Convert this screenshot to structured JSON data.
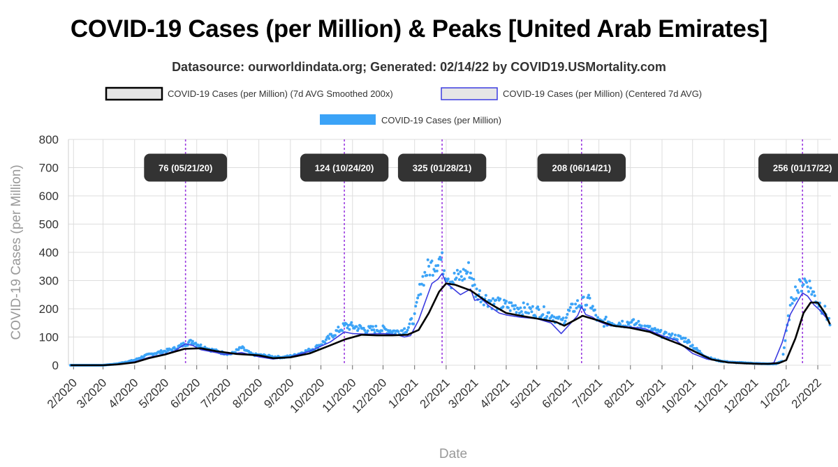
{
  "title": "COVID-19 Cases (per Million) & Peaks [United Arab Emirates]",
  "subtitle": "Datasource: ourworldindata.org; Generated: 02/14/22 by COVID19.USMortality.com",
  "colors": {
    "smoothed": "#000000",
    "centered": "#3b3be0",
    "daily": "#3ba3f7",
    "peak_line": "#9b3be0",
    "peak_label_bg": "#333333",
    "grid": "#dddddd"
  },
  "chart_data": {
    "type": "line",
    "title": "COVID-19 Cases (per Million) & Peaks [United Arab Emirates]",
    "xlabel": "Date",
    "ylabel": "COVID-19 Cases (per Million)",
    "ylim": [
      0,
      800
    ],
    "xlim": [
      "2020-01-27",
      "2022-02-14"
    ],
    "yticks": [
      0,
      100,
      200,
      300,
      400,
      500,
      600,
      700,
      800
    ],
    "xticks": [
      {
        "date": "2020-02-01",
        "label": "2/2020"
      },
      {
        "date": "2020-03-01",
        "label": "3/2020"
      },
      {
        "date": "2020-04-01",
        "label": "4/2020"
      },
      {
        "date": "2020-05-01",
        "label": "5/2020"
      },
      {
        "date": "2020-06-01",
        "label": "6/2020"
      },
      {
        "date": "2020-07-01",
        "label": "7/2020"
      },
      {
        "date": "2020-08-01",
        "label": "8/2020"
      },
      {
        "date": "2020-09-01",
        "label": "9/2020"
      },
      {
        "date": "2020-10-01",
        "label": "10/2020"
      },
      {
        "date": "2020-11-01",
        "label": "11/2020"
      },
      {
        "date": "2020-12-01",
        "label": "12/2020"
      },
      {
        "date": "2021-01-01",
        "label": "1/2021"
      },
      {
        "date": "2021-02-01",
        "label": "2/2021"
      },
      {
        "date": "2021-03-01",
        "label": "3/2021"
      },
      {
        "date": "2021-04-01",
        "label": "4/2021"
      },
      {
        "date": "2021-05-01",
        "label": "5/2021"
      },
      {
        "date": "2021-06-01",
        "label": "6/2021"
      },
      {
        "date": "2021-07-01",
        "label": "7/2021"
      },
      {
        "date": "2021-08-01",
        "label": "8/2021"
      },
      {
        "date": "2021-09-01",
        "label": "9/2021"
      },
      {
        "date": "2021-10-01",
        "label": "10/2021"
      },
      {
        "date": "2021-11-01",
        "label": "11/2021"
      },
      {
        "date": "2021-12-01",
        "label": "12/2021"
      },
      {
        "date": "2022-01-01",
        "label": "1/2022"
      },
      {
        "date": "2022-02-01",
        "label": "2/2022"
      }
    ],
    "grid": true,
    "legend_position": "top-center",
    "legend": [
      {
        "label": "COVID-19 Cases (per Million) (7d AVG Smoothed 200x)",
        "swatch": "box-black"
      },
      {
        "label": "COVID-19 Cases (per Million) (Centered 7d AVG)",
        "swatch": "box-blue"
      },
      {
        "label": "COVID-19 Cases (per Million)",
        "swatch": "bar-lightblue"
      }
    ],
    "peaks": [
      {
        "date": "2020-05-21",
        "value": 76,
        "label": "76 (05/21/20)"
      },
      {
        "date": "2020-10-24",
        "value": 124,
        "label": "124 (10/24/20)"
      },
      {
        "date": "2021-01-28",
        "value": 325,
        "label": "325 (01/28/21)"
      },
      {
        "date": "2021-06-14",
        "value": 208,
        "label": "208 (06/14/21)"
      },
      {
        "date": "2022-01-17",
        "value": 256,
        "label": "256 (01/17/22)"
      }
    ],
    "series": [
      {
        "name": "COVID-19 Cases (per Million) (7d AVG Smoothed 200x)",
        "x": [
          "2020-01-29",
          "2020-03-01",
          "2020-03-15",
          "2020-04-01",
          "2020-04-15",
          "2020-05-01",
          "2020-05-20",
          "2020-06-05",
          "2020-06-20",
          "2020-07-10",
          "2020-08-01",
          "2020-08-15",
          "2020-09-01",
          "2020-09-20",
          "2020-10-10",
          "2020-10-25",
          "2020-11-10",
          "2020-11-25",
          "2020-12-10",
          "2020-12-25",
          "2021-01-05",
          "2021-01-15",
          "2021-01-25",
          "2021-02-01",
          "2021-02-10",
          "2021-02-25",
          "2021-03-15",
          "2021-04-01",
          "2021-04-20",
          "2021-05-05",
          "2021-05-20",
          "2021-05-28",
          "2021-06-15",
          "2021-07-01",
          "2021-07-15",
          "2021-08-01",
          "2021-08-20",
          "2021-09-05",
          "2021-09-20",
          "2021-10-05",
          "2021-10-20",
          "2021-11-05",
          "2021-11-20",
          "2021-12-05",
          "2021-12-15",
          "2021-12-25",
          "2022-01-01",
          "2022-01-10",
          "2022-01-18",
          "2022-01-25",
          "2022-02-01",
          "2022-02-08",
          "2022-02-13"
        ],
        "y": [
          0,
          0,
          3,
          10,
          25,
          38,
          58,
          60,
          50,
          40,
          35,
          25,
          28,
          42,
          70,
          92,
          108,
          106,
          106,
          108,
          125,
          185,
          260,
          290,
          285,
          265,
          220,
          185,
          172,
          163,
          153,
          140,
          175,
          158,
          140,
          132,
          118,
          93,
          72,
          45,
          20,
          10,
          7,
          5,
          5,
          8,
          18,
          95,
          185,
          222,
          222,
          185,
          145
        ]
      },
      {
        "name": "COVID-19 Cases (per Million) (Centered 7d AVG)",
        "x": [
          "2020-01-29",
          "2020-03-01",
          "2020-03-15",
          "2020-04-01",
          "2020-04-15",
          "2020-05-01",
          "2020-05-10",
          "2020-05-21",
          "2020-05-28",
          "2020-06-05",
          "2020-06-20",
          "2020-06-28",
          "2020-07-05",
          "2020-07-15",
          "2020-08-01",
          "2020-08-15",
          "2020-09-01",
          "2020-09-20",
          "2020-10-10",
          "2020-10-24",
          "2020-11-01",
          "2020-11-15",
          "2020-12-01",
          "2020-12-15",
          "2020-12-22",
          "2020-12-28",
          "2021-01-05",
          "2021-01-12",
          "2021-01-18",
          "2021-01-24",
          "2021-01-28",
          "2021-02-01",
          "2021-02-05",
          "2021-02-15",
          "2021-02-25",
          "2021-03-01",
          "2021-03-08",
          "2021-03-15",
          "2021-03-25",
          "2021-04-01",
          "2021-04-15",
          "2021-05-01",
          "2021-05-15",
          "2021-05-25",
          "2021-06-01",
          "2021-06-10",
          "2021-06-14",
          "2021-06-18",
          "2021-06-25",
          "2021-07-01",
          "2021-07-10",
          "2021-07-20",
          "2021-08-01",
          "2021-08-15",
          "2021-09-01",
          "2021-09-15",
          "2021-10-01",
          "2021-10-15",
          "2021-11-01",
          "2021-11-20",
          "2021-12-05",
          "2021-12-15",
          "2021-12-20",
          "2021-12-28",
          "2022-01-05",
          "2022-01-12",
          "2022-01-17",
          "2022-01-22",
          "2022-01-28",
          "2022-02-03",
          "2022-02-10",
          "2022-02-13"
        ],
        "y": [
          0,
          0,
          2,
          12,
          28,
          40,
          50,
          76,
          70,
          55,
          45,
          38,
          40,
          45,
          30,
          22,
          30,
          50,
          82,
          118,
          112,
          110,
          112,
          108,
          100,
          105,
          160,
          230,
          290,
          305,
          325,
          290,
          280,
          250,
          270,
          230,
          235,
          210,
          185,
          178,
          170,
          165,
          150,
          112,
          140,
          175,
          208,
          180,
          170,
          155,
          142,
          138,
          135,
          130,
          105,
          88,
          42,
          22,
          12,
          8,
          6,
          5,
          10,
          80,
          180,
          225,
          256,
          245,
          215,
          195,
          165,
          148
        ]
      },
      {
        "name": "COVID-19 Cases (per Million)",
        "x": [
          "2020-01-29",
          "2020-03-01",
          "2020-03-15",
          "2020-04-01",
          "2020-04-10",
          "2020-04-20",
          "2020-05-01",
          "2020-05-10",
          "2020-05-20",
          "2020-05-28",
          "2020-06-05",
          "2020-06-15",
          "2020-06-25",
          "2020-07-05",
          "2020-07-15",
          "2020-07-25",
          "2020-08-05",
          "2020-08-15",
          "2020-08-25",
          "2020-09-05",
          "2020-09-15",
          "2020-09-25",
          "2020-10-05",
          "2020-10-15",
          "2020-10-25",
          "2020-11-05",
          "2020-11-15",
          "2020-11-25",
          "2020-12-05",
          "2020-12-15",
          "2020-12-25",
          "2021-01-01",
          "2021-01-08",
          "2021-01-14",
          "2021-01-20",
          "2021-01-26",
          "2021-02-01",
          "2021-02-06",
          "2021-02-12",
          "2021-02-18",
          "2021-02-24",
          "2021-03-02",
          "2021-03-10",
          "2021-03-20",
          "2021-04-01",
          "2021-04-12",
          "2021-04-24",
          "2021-05-05",
          "2021-05-15",
          "2021-05-25",
          "2021-06-02",
          "2021-06-10",
          "2021-06-16",
          "2021-06-22",
          "2021-07-01",
          "2021-07-10",
          "2021-07-20",
          "2021-08-01",
          "2021-08-12",
          "2021-08-25",
          "2021-09-05",
          "2021-09-15",
          "2021-09-25",
          "2021-10-05",
          "2021-10-15",
          "2021-10-28",
          "2021-11-10",
          "2021-11-25",
          "2021-12-05",
          "2021-12-15",
          "2021-12-22",
          "2021-12-28",
          "2022-01-03",
          "2022-01-08",
          "2022-01-13",
          "2022-01-18",
          "2022-01-23",
          "2022-01-28",
          "2022-02-03",
          "2022-02-08",
          "2022-02-13"
        ],
        "y": [
          0,
          0,
          5,
          18,
          32,
          42,
          50,
          58,
          75,
          85,
          68,
          55,
          45,
          40,
          62,
          38,
          35,
          30,
          28,
          35,
          48,
          60,
          85,
          115,
          140,
          135,
          125,
          128,
          125,
          118,
          130,
          170,
          300,
          340,
          360,
          380,
          330,
          300,
          310,
          320,
          340,
          260,
          240,
          220,
          210,
          205,
          195,
          190,
          180,
          150,
          190,
          215,
          220,
          225,
          150,
          155,
          150,
          150,
          140,
          120,
          105,
          100,
          90,
          55,
          28,
          15,
          10,
          8,
          6,
          5,
          5,
          15,
          160,
          255,
          270,
          300,
          290,
          250,
          215,
          190,
          150
        ]
      }
    ]
  },
  "legend_labels": {
    "smoothed": "COVID-19 Cases (per Million) (7d AVG Smoothed 200x)",
    "centered": "COVID-19 Cases (per Million) (Centered 7d AVG)",
    "daily": "COVID-19 Cases (per Million)"
  },
  "axis_titles": {
    "x": "Date",
    "y": "COVID-19 Cases (per Million)"
  }
}
